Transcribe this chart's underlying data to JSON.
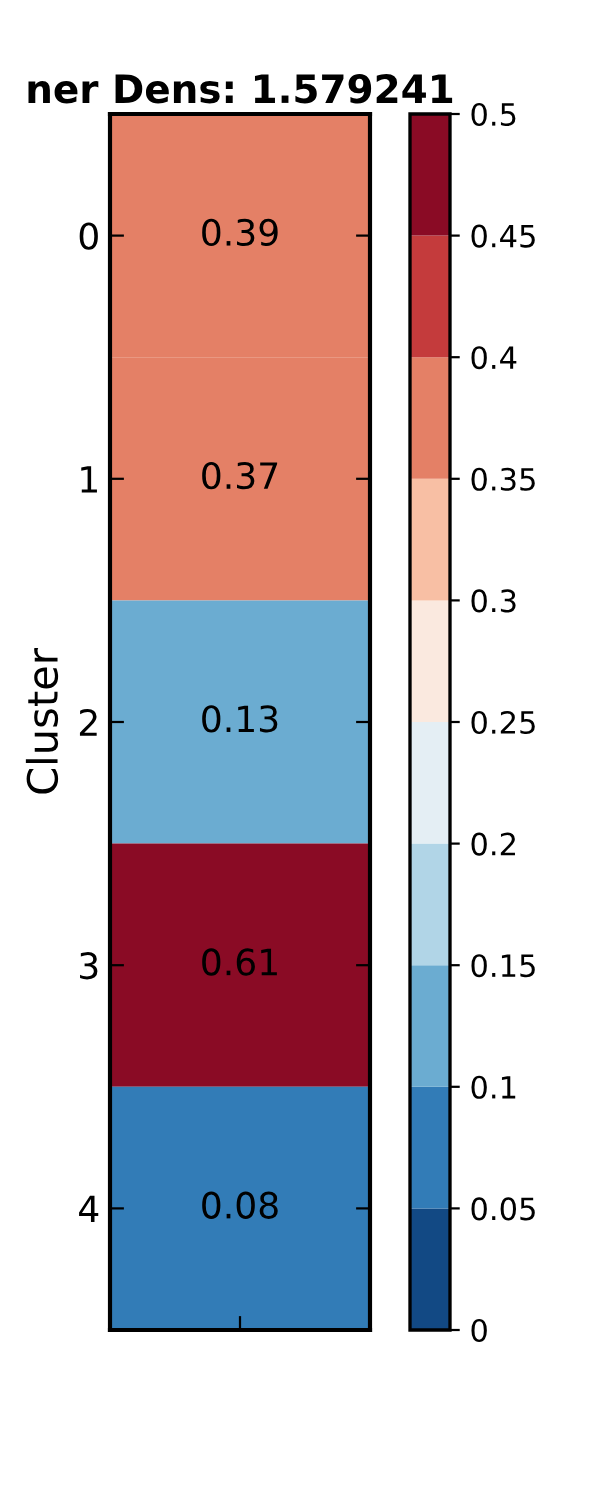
{
  "chart_data": {
    "type": "heatmap",
    "title": "ner Dens: 1.579241",
    "ylabel": "Cluster",
    "categories": [
      null
    ],
    "y_categories": [
      "0",
      "1",
      "2",
      "3",
      "4"
    ],
    "cells": [
      [
        0.39
      ],
      [
        0.37
      ],
      [
        0.13
      ],
      [
        0.61
      ],
      [
        0.08
      ]
    ],
    "data_labels": true,
    "clim": [
      0,
      0.5
    ],
    "cticks": [
      0,
      0.05,
      0.1,
      0.15,
      0.2,
      0.25,
      0.3,
      0.35,
      0.4,
      0.45,
      0.5
    ]
  }
}
